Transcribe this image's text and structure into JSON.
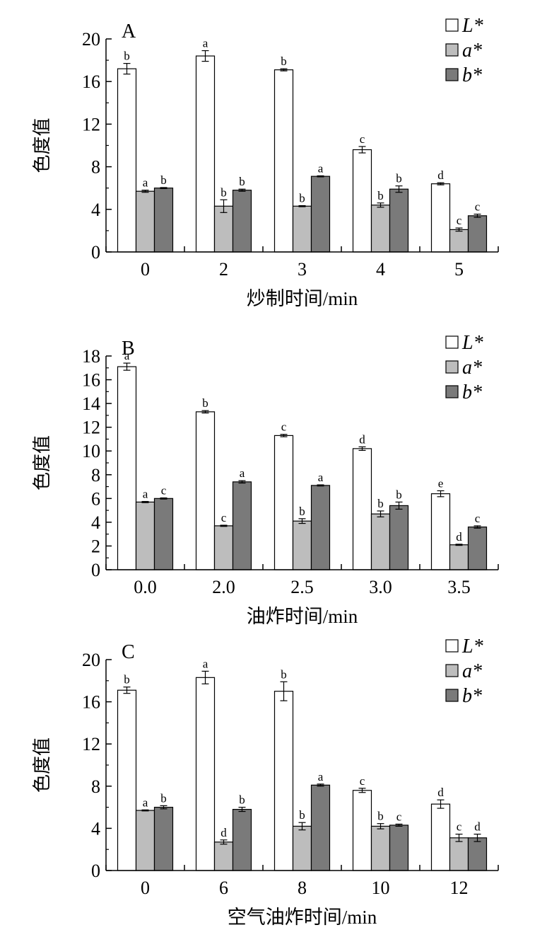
{
  "colors": {
    "L*": "#ffffff",
    "a*": "#bdbdbd",
    "b*": "#7a7a7a",
    "stroke": "#000000"
  },
  "chart_data": [
    {
      "type": "bar",
      "panel_label": "A",
      "ylabel": "色度值",
      "xlabel": "炒制时间/min",
      "categories": [
        "0",
        "2",
        "3",
        "4",
        "5"
      ],
      "ylim": [
        0,
        20
      ],
      "yticks": [
        "0",
        "4",
        "8",
        "12",
        "16",
        "20"
      ],
      "legend_position": "top-right",
      "grid": false,
      "series": [
        {
          "name": "L*",
          "values": [
            17.2,
            18.4,
            17.1,
            9.6,
            6.4
          ],
          "errors": [
            0.5,
            0.5,
            0.1,
            0.3,
            0.1
          ],
          "letters": [
            "b",
            "a",
            "b",
            "c",
            "d"
          ]
        },
        {
          "name": "a*",
          "values": [
            5.7,
            4.3,
            4.3,
            4.4,
            2.1
          ],
          "errors": [
            0.1,
            0.6,
            0.05,
            0.2,
            0.15
          ],
          "letters": [
            "a",
            "b",
            "b",
            "b",
            "c"
          ]
        },
        {
          "name": "b*",
          "values": [
            6.0,
            5.8,
            7.1,
            5.9,
            3.4
          ],
          "errors": [
            0.05,
            0.1,
            0.05,
            0.3,
            0.15
          ],
          "letters": [
            "b",
            "b",
            "a",
            "b",
            "c"
          ]
        }
      ]
    },
    {
      "type": "bar",
      "panel_label": "B",
      "ylabel": "色度值",
      "xlabel": "油炸时间/min",
      "categories": [
        "0.0",
        "2.0",
        "2.5",
        "3.0",
        "3.5"
      ],
      "ylim": [
        0,
        18
      ],
      "yticks": [
        "0",
        "2",
        "4",
        "6",
        "8",
        "10",
        "12",
        "14",
        "16",
        "18"
      ],
      "legend_position": "top-right",
      "grid": false,
      "series": [
        {
          "name": "L*",
          "values": [
            17.1,
            13.3,
            11.3,
            10.2,
            6.4
          ],
          "errors": [
            0.3,
            0.1,
            0.1,
            0.15,
            0.25
          ],
          "letters": [
            "a",
            "b",
            "c",
            "d",
            "e"
          ]
        },
        {
          "name": "a*",
          "values": [
            5.7,
            3.7,
            4.1,
            4.7,
            2.1
          ],
          "errors": [
            0.05,
            0.05,
            0.2,
            0.25,
            0.05
          ],
          "letters": [
            "a",
            "c",
            "b",
            "b",
            "d"
          ]
        },
        {
          "name": "b*",
          "values": [
            6.0,
            7.4,
            7.1,
            5.4,
            3.6
          ],
          "errors": [
            0.05,
            0.1,
            0.05,
            0.3,
            0.1
          ],
          "letters": [
            "c",
            "a",
            "a",
            "b",
            "c"
          ]
        }
      ]
    },
    {
      "type": "bar",
      "panel_label": "C",
      "ylabel": "色度值",
      "xlabel": "空气油炸时间/min",
      "categories": [
        "0",
        "6",
        "8",
        "10",
        "12"
      ],
      "ylim": [
        0,
        20
      ],
      "yticks": [
        "0",
        "4",
        "8",
        "12",
        "16",
        "20"
      ],
      "legend_position": "top-right",
      "grid": false,
      "series": [
        {
          "name": "L*",
          "values": [
            17.1,
            18.3,
            17.0,
            7.6,
            6.3
          ],
          "errors": [
            0.3,
            0.6,
            0.9,
            0.2,
            0.4
          ],
          "letters": [
            "b",
            "a",
            "b",
            "c",
            "d"
          ]
        },
        {
          "name": "a*",
          "values": [
            5.7,
            2.7,
            4.2,
            4.2,
            3.1
          ],
          "errors": [
            0.05,
            0.2,
            0.35,
            0.25,
            0.35
          ],
          "letters": [
            "a",
            "d",
            "b",
            "b",
            "c"
          ]
        },
        {
          "name": "b*",
          "values": [
            6.0,
            5.8,
            8.1,
            4.3,
            3.1
          ],
          "errors": [
            0.15,
            0.2,
            0.1,
            0.1,
            0.35
          ],
          "letters": [
            "b",
            "b",
            "a",
            "c",
            "d"
          ]
        }
      ]
    }
  ]
}
